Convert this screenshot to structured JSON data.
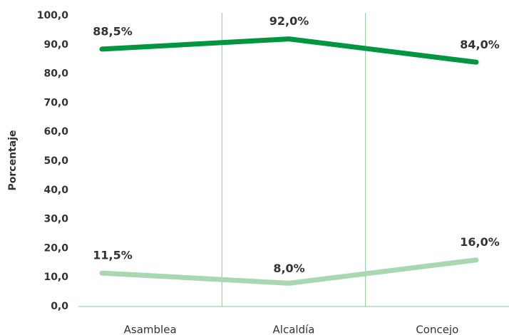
{
  "chart_data": {
    "type": "line",
    "ylabel": "Porcentaje",
    "categories": [
      "Asamblea",
      "Alcaldía",
      "Concejo"
    ],
    "series": [
      {
        "color": "#00963f",
        "values": [
          88.5,
          92.0,
          84.0
        ],
        "value_labels": [
          "88,5%",
          "92,0%",
          "84,0%"
        ]
      },
      {
        "color": "#a9d7b1",
        "values": [
          11.5,
          8.0,
          16.0
        ],
        "value_labels": [
          "11,5%",
          "8,0%",
          "16,0%"
        ]
      }
    ],
    "ylim": [
      0,
      100
    ],
    "yticks": [
      {
        "value": 0,
        "label": "0,0"
      },
      {
        "value": 10,
        "label": "10,0"
      },
      {
        "value": 20,
        "label": "20,0"
      },
      {
        "value": 30,
        "label": "30,0"
      },
      {
        "value": 40,
        "label": "40,0"
      },
      {
        "value": 50,
        "label": "50,0"
      },
      {
        "value": 60,
        "label": "60,0"
      },
      {
        "value": 70,
        "label": "70,0"
      },
      {
        "value": 80,
        "label": "80,0"
      },
      {
        "value": 90,
        "label": "90,0"
      },
      {
        "value": 100,
        "label": "100,0"
      }
    ]
  }
}
